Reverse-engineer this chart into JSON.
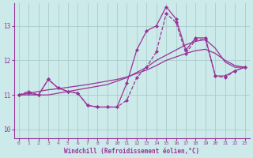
{
  "xlabel": "Windchill (Refroidissement éolien,°C)",
  "background_color": "#cceaea",
  "grid_color": "#aacccc",
  "line_color": "#993399",
  "xlim": [
    -0.5,
    23.5
  ],
  "ylim": [
    9.75,
    13.65
  ],
  "yticks": [
    10,
    11,
    12,
    13
  ],
  "xticks": [
    0,
    1,
    2,
    3,
    4,
    5,
    6,
    7,
    8,
    9,
    10,
    11,
    12,
    13,
    14,
    15,
    16,
    17,
    18,
    19,
    20,
    21,
    22,
    23
  ],
  "jagged_y": [
    11.0,
    11.1,
    11.0,
    11.45,
    11.2,
    11.1,
    11.05,
    10.7,
    10.65,
    10.65,
    10.65,
    10.85,
    11.5,
    11.8,
    12.25,
    13.35,
    13.1,
    12.2,
    12.6,
    12.6,
    11.55,
    11.5,
    11.7,
    11.8
  ],
  "smooth_y": [
    11.0,
    11.0,
    11.0,
    11.0,
    11.05,
    11.1,
    11.15,
    11.2,
    11.25,
    11.3,
    11.4,
    11.5,
    11.65,
    11.8,
    12.0,
    12.15,
    12.3,
    12.45,
    12.55,
    12.6,
    12.35,
    11.95,
    11.8,
    11.8
  ],
  "upper_y": [
    11.0,
    11.05,
    11.0,
    11.45,
    11.2,
    11.1,
    11.05,
    10.7,
    10.65,
    10.65,
    10.65,
    11.35,
    12.3,
    12.85,
    13.0,
    13.55,
    13.2,
    12.3,
    12.65,
    12.65,
    11.55,
    11.55,
    11.7,
    11.8
  ],
  "regression_y": [
    11.0,
    11.05,
    11.1,
    11.15,
    11.18,
    11.22,
    11.26,
    11.3,
    11.35,
    11.4,
    11.45,
    11.52,
    11.62,
    11.72,
    11.85,
    12.0,
    12.1,
    12.2,
    12.28,
    12.32,
    12.2,
    12.0,
    11.85,
    11.8
  ]
}
